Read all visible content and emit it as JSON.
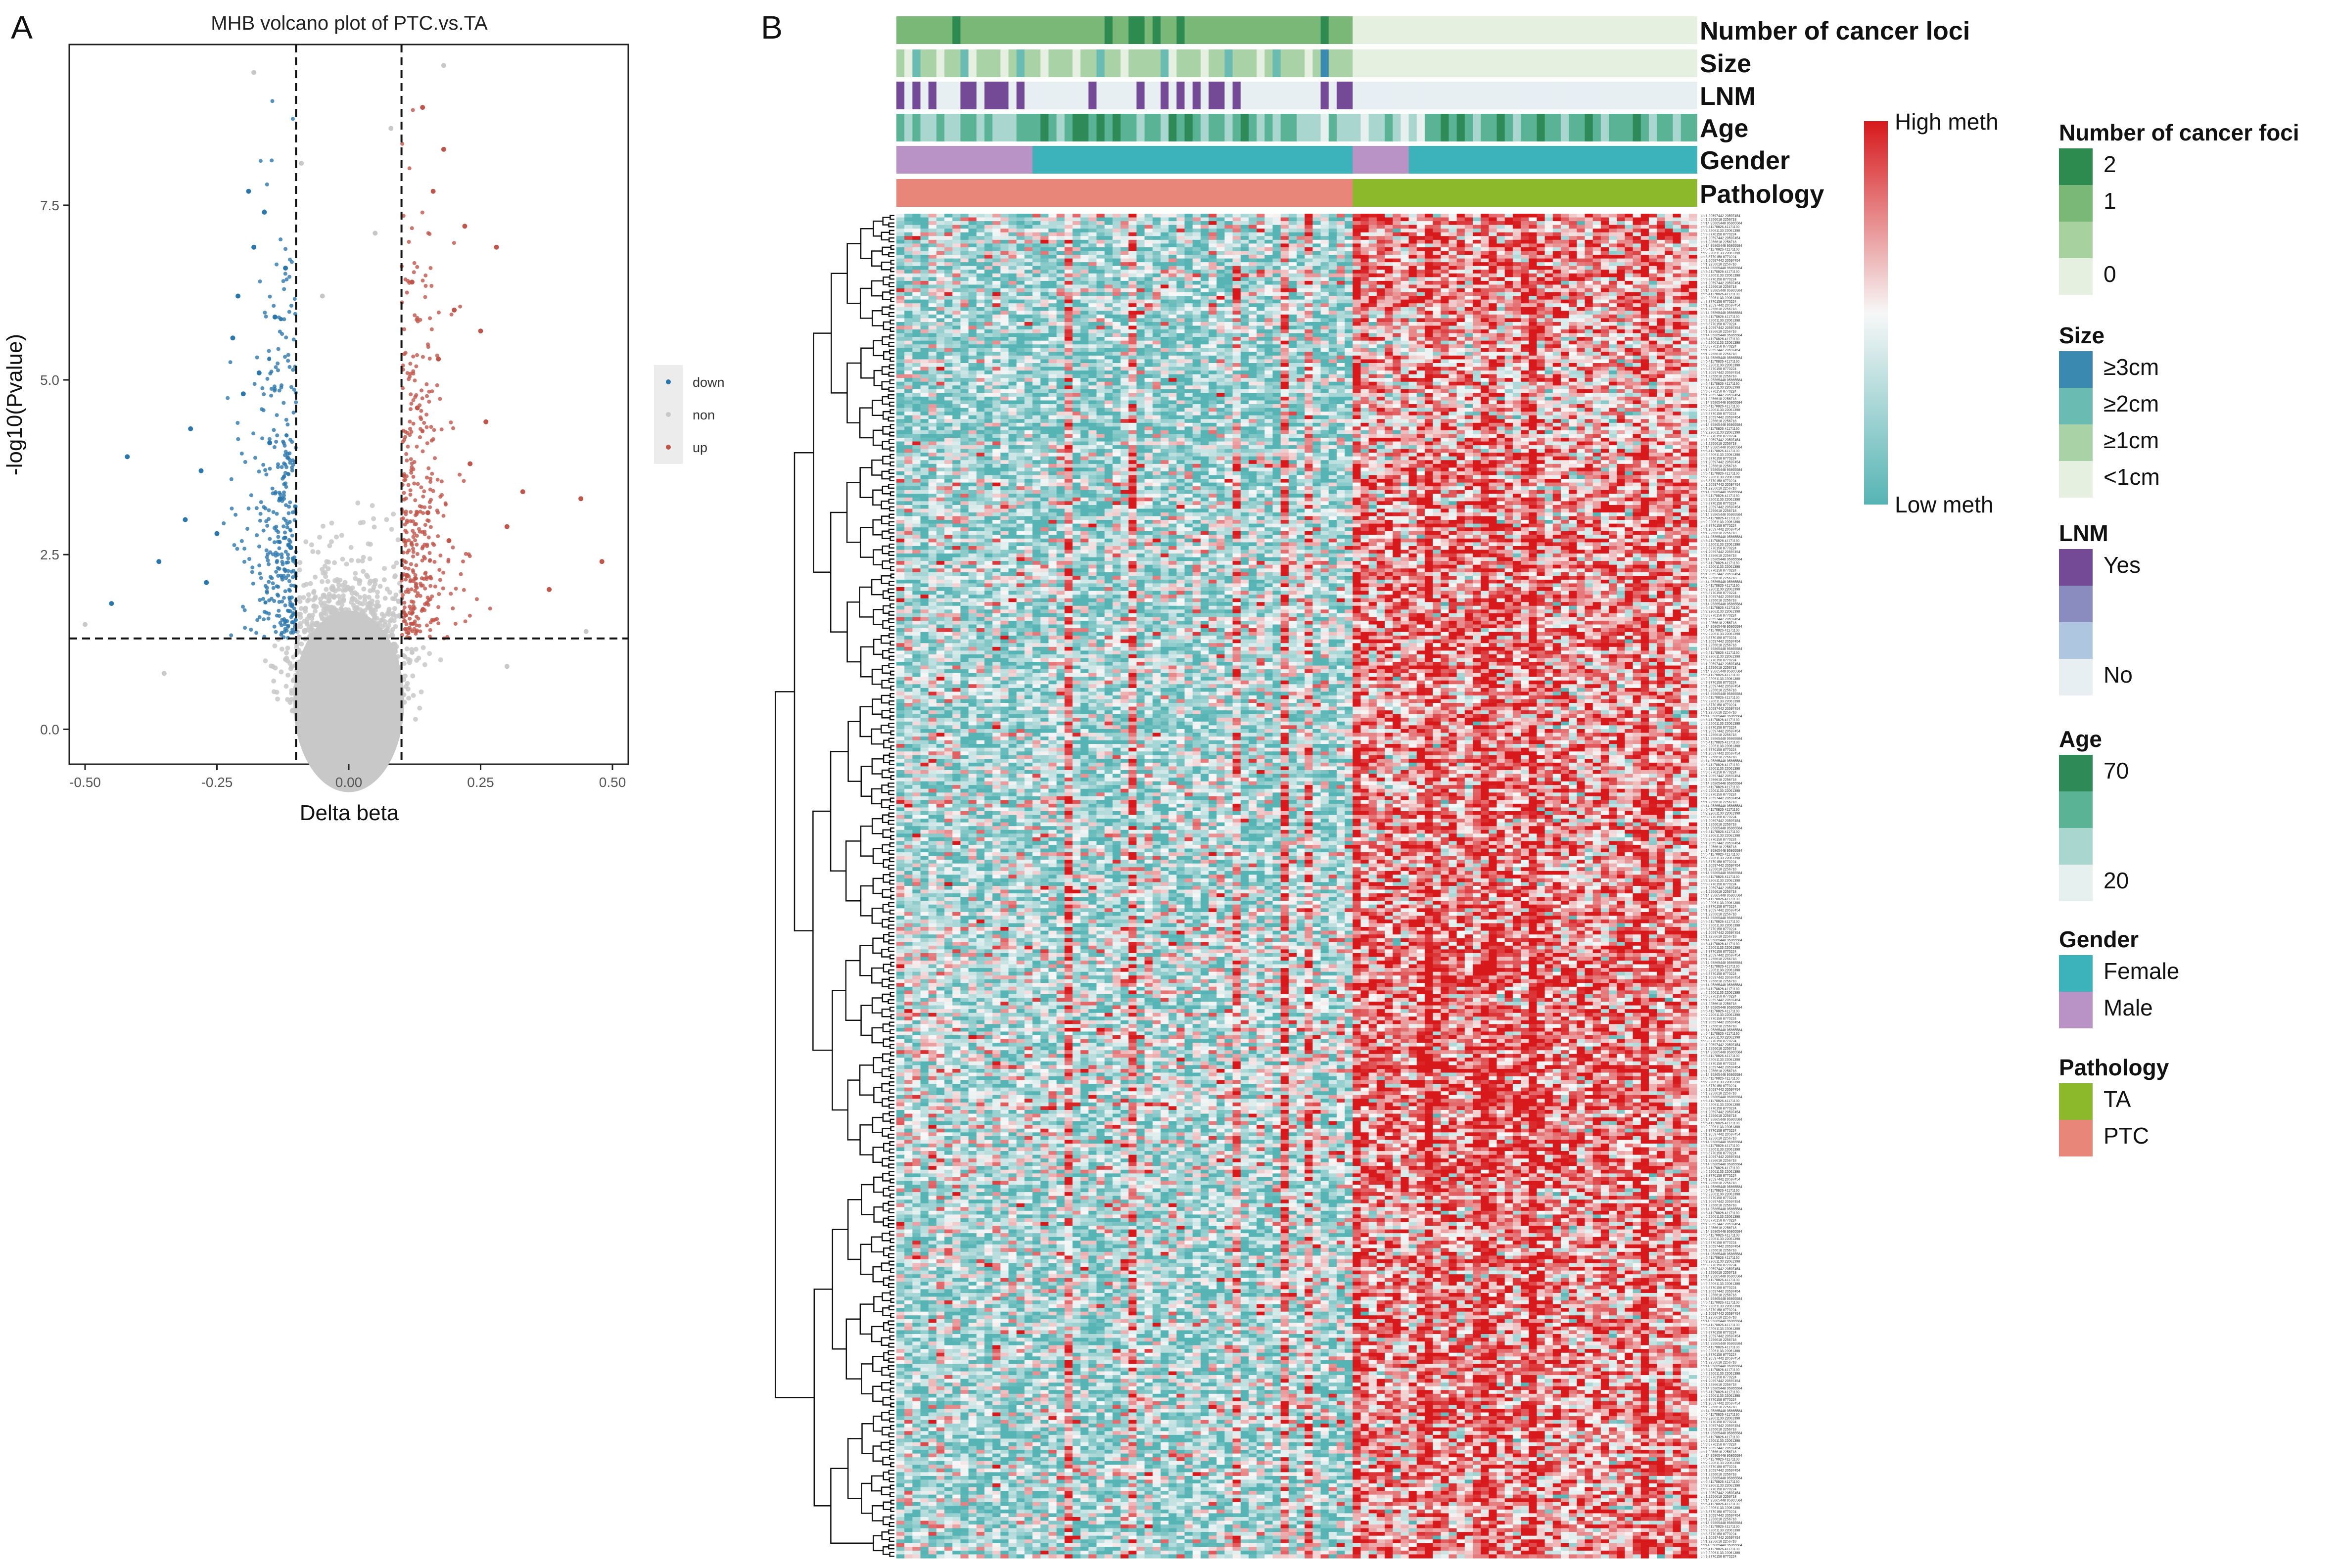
{
  "panels": {
    "a_letter": "A",
    "b_letter": "B"
  },
  "chart_data": [
    {
      "type": "scatter",
      "title": "MHB volcano plot of PTC.vs.TA",
      "xlabel": "Delta beta",
      "ylabel": "-log10(Pvalue)",
      "xlim": [
        -0.53,
        0.53
      ],
      "ylim": [
        -0.5,
        9.8
      ],
      "xticks": [
        -0.5,
        -0.25,
        0,
        0.25,
        0.5
      ],
      "xtick_labels": [
        "-0.50",
        "-0.25",
        "0.00",
        "0.25",
        "0.50"
      ],
      "yticks": [
        0,
        2.5,
        5,
        7.5
      ],
      "ytick_labels": [
        "0.0",
        "2.5",
        "5.0",
        "7.5"
      ],
      "thresholds": {
        "x": [
          -0.1,
          0.1
        ],
        "y": 1.3
      },
      "grid": false,
      "legend_position": "right",
      "legend": [
        {
          "name": "down",
          "color": "#2a77ad"
        },
        {
          "name": "non",
          "color": "#c8c8c8"
        },
        {
          "name": "up",
          "color": "#c0554a"
        }
      ],
      "series": [
        {
          "name": "down",
          "color": "#2a77ad",
          "x": [
            -0.45,
            -0.42,
            -0.36,
            -0.31,
            -0.3,
            -0.28,
            -0.27,
            -0.25,
            -0.22,
            -0.21,
            -0.2,
            -0.19,
            -0.18,
            -0.17,
            -0.16,
            -0.15,
            -0.14,
            -0.13,
            -0.12,
            -0.11
          ],
          "y": [
            1.8,
            3.9,
            2.4,
            3.0,
            4.3,
            3.7,
            2.1,
            2.8,
            5.6,
            6.2,
            4.8,
            7.7,
            6.9,
            5.1,
            7.4,
            4.1,
            5.9,
            3.3,
            6.6,
            2.6
          ]
        },
        {
          "name": "non",
          "color": "#c8c8c8",
          "x": [
            -0.5,
            -0.35,
            -0.18,
            -0.12,
            -0.05,
            0,
            0.05,
            0.12,
            0.18,
            0.3,
            0.45,
            -0.09,
            0.08
          ],
          "y": [
            1.5,
            0.8,
            9.4,
            1.0,
            6.2,
            0.3,
            7.1,
            1.1,
            9.5,
            0.9,
            1.4,
            8.1,
            8.6
          ]
        },
        {
          "name": "up",
          "color": "#c0554a",
          "x": [
            0.11,
            0.12,
            0.13,
            0.14,
            0.15,
            0.16,
            0.17,
            0.18,
            0.19,
            0.2,
            0.22,
            0.23,
            0.25,
            0.26,
            0.28,
            0.3,
            0.33,
            0.38,
            0.44,
            0.48
          ],
          "y": [
            2.2,
            6.4,
            4.6,
            8.9,
            3.1,
            7.7,
            5.3,
            8.3,
            2.7,
            6.0,
            7.2,
            3.8,
            5.7,
            4.4,
            6.9,
            2.9,
            3.4,
            2.0,
            3.3,
            2.4
          ]
        }
      ]
    },
    {
      "type": "heatmap",
      "columns": {
        "count": 100,
        "ptc": 57,
        "ta": 43
      },
      "rows": {
        "count": 360
      },
      "color_scale": {
        "high_label": "High meth",
        "low_label": "Low meth",
        "high": "#d7191c",
        "mid": "#f7f7f7",
        "low": "#56b4b4"
      },
      "annotation_tracks": [
        {
          "name": "Number of cancer loci",
          "type": "levels",
          "levels": [
            {
              "label": "2",
              "color": "#2e8b4f"
            },
            {
              "label": "1",
              "color": "#7ab878"
            },
            {
              "label": "",
              "color": "#a8d1a0"
            },
            {
              "label": "0",
              "color": "#e6f0e0"
            }
          ],
          "values": [
            1,
            1,
            1,
            1,
            1,
            1,
            1,
            0,
            1,
            1,
            1,
            1,
            1,
            1,
            1,
            1,
            1,
            1,
            1,
            1,
            1,
            1,
            1,
            1,
            1,
            1,
            0,
            1,
            1,
            0,
            0,
            1,
            0,
            1,
            1,
            0,
            1,
            1,
            1,
            1,
            1,
            1,
            1,
            1,
            1,
            1,
            1,
            1,
            1,
            1,
            1,
            1,
            1,
            0,
            1,
            1,
            1,
            3,
            3,
            3,
            3,
            3,
            3,
            3,
            3,
            3,
            3,
            3,
            3,
            3,
            3,
            3,
            3,
            3,
            3,
            3,
            3,
            3,
            3,
            3,
            3,
            3,
            3,
            3,
            3,
            3,
            3,
            3,
            3,
            3,
            3,
            3,
            3,
            3,
            3,
            3,
            3,
            3,
            3,
            3
          ]
        },
        {
          "name": "Size",
          "type": "levels",
          "levels": [
            {
              "label": "≥3cm",
              "color": "#3a89b0"
            },
            {
              "label": "≥2cm",
              "color": "#6abcb3"
            },
            {
              "label": "≥1cm",
              "color": "#a9d3a6"
            },
            {
              "label": "<1cm",
              "color": "#e6f0e0"
            }
          ],
          "values": [
            2,
            3,
            1,
            2,
            2,
            3,
            2,
            2,
            1,
            3,
            2,
            2,
            2,
            3,
            2,
            1,
            2,
            2,
            3,
            2,
            2,
            2,
            3,
            2,
            2,
            1,
            2,
            2,
            3,
            2,
            2,
            2,
            2,
            1,
            3,
            2,
            2,
            2,
            3,
            2,
            2,
            1,
            2,
            2,
            2,
            3,
            2,
            1,
            2,
            2,
            2,
            3,
            2,
            0,
            2,
            2,
            2,
            3,
            3,
            3,
            3,
            3,
            3,
            3,
            3,
            3,
            3,
            3,
            3,
            3,
            3,
            3,
            3,
            3,
            3,
            3,
            3,
            3,
            3,
            3,
            3,
            3,
            3,
            3,
            3,
            3,
            3,
            3,
            3,
            3,
            3,
            3,
            3,
            3,
            3,
            3,
            3,
            3,
            3,
            3
          ]
        },
        {
          "name": "LNM",
          "type": "levels",
          "levels": [
            {
              "label": "Yes",
              "color": "#744a96"
            },
            {
              "label": "",
              "color": "#8a8cbf"
            },
            {
              "label": "",
              "color": "#aec6df"
            },
            {
              "label": "No",
              "color": "#e7eff3"
            }
          ],
          "values": [
            0,
            3,
            0,
            3,
            0,
            3,
            3,
            3,
            0,
            0,
            3,
            0,
            0,
            0,
            3,
            0,
            3,
            3,
            3,
            3,
            3,
            3,
            3,
            3,
            0,
            3,
            3,
            3,
            3,
            3,
            0,
            3,
            3,
            0,
            3,
            0,
            3,
            0,
            3,
            0,
            0,
            3,
            0,
            3,
            3,
            3,
            3,
            3,
            3,
            3,
            3,
            3,
            3,
            0,
            3,
            0,
            0,
            3,
            3,
            3,
            3,
            3,
            3,
            3,
            3,
            3,
            3,
            3,
            3,
            3,
            3,
            3,
            3,
            3,
            3,
            3,
            3,
            3,
            3,
            3,
            3,
            3,
            3,
            3,
            3,
            3,
            3,
            3,
            3,
            3,
            3,
            3,
            3,
            3,
            3,
            3,
            3,
            3,
            3,
            3
          ]
        },
        {
          "name": "Age",
          "type": "levels",
          "levels": [
            {
              "label": "70",
              "color": "#2e8b57"
            },
            {
              "label": "",
              "color": "#5ab394"
            },
            {
              "label": "",
              "color": "#a9d7d0"
            },
            {
              "label": "20",
              "color": "#e6f0ee"
            }
          ],
          "values": [
            1,
            2,
            1,
            2,
            2,
            1,
            2,
            2,
            1,
            1,
            2,
            1,
            2,
            2,
            2,
            1,
            1,
            1,
            0,
            1,
            2,
            1,
            0,
            0,
            1,
            0,
            1,
            0,
            1,
            1,
            2,
            1,
            1,
            2,
            0,
            1,
            0,
            1,
            2,
            1,
            1,
            2,
            1,
            0,
            1,
            2,
            1,
            2,
            1,
            1,
            2,
            2,
            2,
            3,
            1,
            2,
            2,
            2,
            3,
            2,
            2,
            1,
            2,
            3,
            2,
            3,
            1,
            1,
            0,
            1,
            0,
            1,
            2,
            1,
            1,
            0,
            1,
            2,
            1,
            1,
            0,
            1,
            1,
            2,
            1,
            1,
            0,
            1,
            2,
            1,
            1,
            1,
            0,
            1,
            2,
            1,
            1,
            2,
            1,
            1
          ]
        },
        {
          "name": "Gender",
          "type": "levels",
          "levels": [
            {
              "label": "Female",
              "color": "#3cb3bb"
            },
            {
              "label": "Male",
              "color": "#b993c5"
            }
          ],
          "values": [
            1,
            1,
            1,
            1,
            1,
            1,
            1,
            1,
            1,
            1,
            1,
            1,
            1,
            1,
            1,
            1,
            1,
            0,
            0,
            0,
            0,
            0,
            0,
            0,
            0,
            0,
            0,
            0,
            0,
            0,
            0,
            0,
            0,
            0,
            0,
            0,
            0,
            0,
            0,
            0,
            0,
            0,
            0,
            0,
            0,
            0,
            0,
            0,
            0,
            0,
            0,
            0,
            0,
            0,
            0,
            0,
            0,
            1,
            1,
            1,
            1,
            1,
            1,
            1,
            0,
            0,
            0,
            0,
            0,
            0,
            0,
            0,
            0,
            0,
            0,
            0,
            0,
            0,
            0,
            0,
            0,
            0,
            0,
            0,
            0,
            0,
            0,
            0,
            0,
            0,
            0,
            0,
            0,
            0,
            0,
            0,
            0,
            0,
            0,
            0
          ]
        },
        {
          "name": "Pathology",
          "type": "levels",
          "levels": [
            {
              "label": "TA",
              "color": "#8cb82c"
            },
            {
              "label": "PTC",
              "color": "#e8867a"
            }
          ],
          "values": [
            1,
            1,
            1,
            1,
            1,
            1,
            1,
            1,
            1,
            1,
            1,
            1,
            1,
            1,
            1,
            1,
            1,
            1,
            1,
            1,
            1,
            1,
            1,
            1,
            1,
            1,
            1,
            1,
            1,
            1,
            1,
            1,
            1,
            1,
            1,
            1,
            1,
            1,
            1,
            1,
            1,
            1,
            1,
            1,
            1,
            1,
            1,
            1,
            1,
            1,
            1,
            1,
            1,
            1,
            1,
            1,
            1,
            0,
            0,
            0,
            0,
            0,
            0,
            0,
            0,
            0,
            0,
            0,
            0,
            0,
            0,
            0,
            0,
            0,
            0,
            0,
            0,
            0,
            0,
            0,
            0,
            0,
            0,
            0,
            0,
            0,
            0,
            0,
            0,
            0,
            0,
            0,
            0,
            0,
            0,
            0,
            0,
            0,
            0,
            0
          ]
        }
      ],
      "legend_groups": [
        {
          "title": "Number of cancer foci",
          "track": 0
        },
        {
          "title": "Size",
          "track": 1
        },
        {
          "title": "LNM",
          "track": 2
        },
        {
          "title": "Age",
          "track": 3
        },
        {
          "title": "Gender",
          "track": 4
        },
        {
          "title": "Pathology",
          "track": 5
        }
      ],
      "row_labels_sample": [
        "chr1 20597442 20597454",
        "chr1 2256618 2256718",
        "chr14 95865448 95865584",
        "chr6 41170826 41171130",
        "chr2 22061133 22061398",
        "chr3 8770158 8770224"
      ]
    }
  ]
}
